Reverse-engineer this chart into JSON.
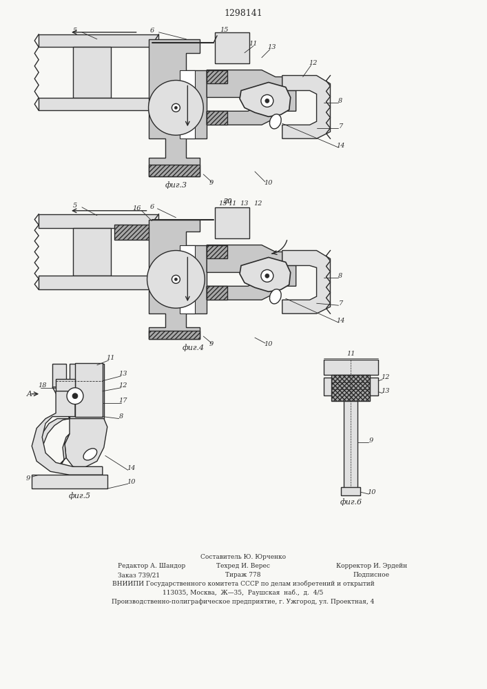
{
  "patent_number": "1298141",
  "bg": "#f8f8f5",
  "lc": "#2a2a2a",
  "gray1": "#c8c8c8",
  "gray2": "#e0e0e0",
  "gray3": "#a8a8a8",
  "footer_lines": [
    "Составитель Ю. Юрченко",
    "Редактор А. Шандор",
    "Техред И. Верес",
    "Корректор И. Эрдейн",
    "Заказ 739/21",
    "Тираж 778",
    "Подписное",
    "ВНИИПИ Государственного комитета СССР по делам изобретений и открытий",
    "113035, Москва,  Ж—35,  Раушская  наб.,  д.  4/5",
    "Производственно-полиграфическое предприятие, г. Ужгород, ул. Проектная, 4"
  ],
  "fig3_label": "фиг.3",
  "fig4_label": "фиг.4",
  "fig5_label": "фиг.5",
  "fig6_label": "фиг.6"
}
